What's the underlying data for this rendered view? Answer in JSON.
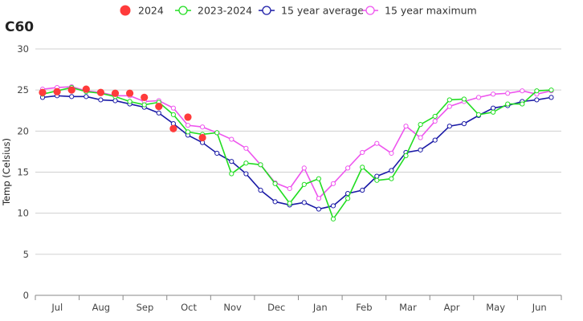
{
  "chart_data": {
    "type": "line",
    "title": "C60",
    "ylabel": "Temp (Celsius)",
    "xlabel": "",
    "ylim": [
      0,
      30
    ],
    "yticks": [
      0,
      5,
      10,
      15,
      20,
      25,
      30
    ],
    "x_tick_labels": [
      "Jul",
      "Aug",
      "Sep",
      "Oct",
      "Nov",
      "Dec",
      "Jan",
      "Feb",
      "Mar",
      "Apr",
      "May",
      "Jun"
    ],
    "grid": "horizontal",
    "legend_position": "top",
    "x_index_range": [
      1,
      37
    ],
    "series": [
      {
        "name": "2024",
        "style": "marker",
        "color": "#ff3b3b",
        "x": [
          1,
          2,
          3,
          4,
          5,
          6,
          7,
          8,
          9,
          10,
          11,
          12,
          13
        ],
        "values": [
          24.7,
          24.8,
          25.0,
          25.1,
          24.7,
          24.6,
          24.6,
          24.1,
          23.0,
          20.3,
          21.7,
          19.2,
          null
        ]
      },
      {
        "name": "2023-2024",
        "style": "line",
        "color": "#22dd22",
        "x": [
          1,
          2,
          3,
          4,
          5,
          6,
          7,
          8,
          9,
          10,
          11,
          12,
          13,
          14,
          15,
          16,
          17,
          18,
          19,
          20,
          21,
          22,
          23,
          24,
          25,
          26,
          27,
          28,
          29,
          30,
          31,
          32,
          33,
          34,
          35,
          36,
          37
        ],
        "values": [
          24.5,
          24.9,
          25.3,
          24.8,
          24.6,
          24.2,
          23.6,
          23.2,
          23.5,
          22.0,
          19.9,
          19.6,
          19.8,
          14.8,
          16.1,
          15.9,
          13.6,
          11.2,
          13.5,
          14.2,
          9.3,
          11.8,
          15.6,
          14.0,
          14.2,
          17.0,
          20.8,
          21.8,
          23.8,
          23.9,
          22.0,
          22.3,
          23.3,
          23.3,
          24.9,
          25.0,
          null
        ]
      },
      {
        "name": "15 year average",
        "style": "line",
        "color": "#1a1aa6",
        "x": [
          1,
          2,
          3,
          4,
          5,
          6,
          7,
          8,
          9,
          10,
          11,
          12,
          13,
          14,
          15,
          16,
          17,
          18,
          19,
          20,
          21,
          22,
          23,
          24,
          25,
          26,
          27,
          28,
          29,
          30,
          31,
          32,
          33,
          34,
          35,
          36,
          37
        ],
        "values": [
          24.1,
          24.3,
          24.2,
          24.2,
          23.8,
          23.7,
          23.3,
          22.9,
          22.2,
          20.9,
          19.5,
          18.6,
          17.3,
          16.3,
          14.8,
          12.8,
          11.4,
          11.0,
          11.3,
          10.5,
          10.9,
          12.4,
          12.8,
          14.5,
          15.2,
          17.4,
          17.7,
          18.9,
          20.6,
          20.9,
          21.9,
          22.8,
          23.1,
          23.6,
          23.8,
          24.1,
          null
        ]
      },
      {
        "name": "15 year maximum",
        "style": "line",
        "color": "#ee55ee",
        "x": [
          1,
          2,
          3,
          4,
          5,
          6,
          7,
          8,
          9,
          10,
          11,
          12,
          13,
          14,
          15,
          16,
          17,
          18,
          19,
          20,
          21,
          22,
          23,
          24,
          25,
          26,
          27,
          28,
          29,
          30,
          31,
          32,
          33,
          34,
          35,
          36,
          37
        ],
        "values": [
          25.1,
          25.3,
          25.4,
          24.9,
          24.7,
          24.3,
          24.3,
          23.6,
          23.7,
          22.8,
          20.7,
          20.5,
          19.8,
          19.0,
          17.9,
          15.9,
          13.7,
          13.0,
          15.5,
          11.8,
          13.6,
          15.5,
          17.4,
          18.5,
          17.3,
          20.6,
          19.2,
          21.2,
          23.0,
          23.6,
          24.1,
          24.5,
          24.6,
          24.9,
          24.5,
          24.9,
          null
        ]
      }
    ]
  }
}
